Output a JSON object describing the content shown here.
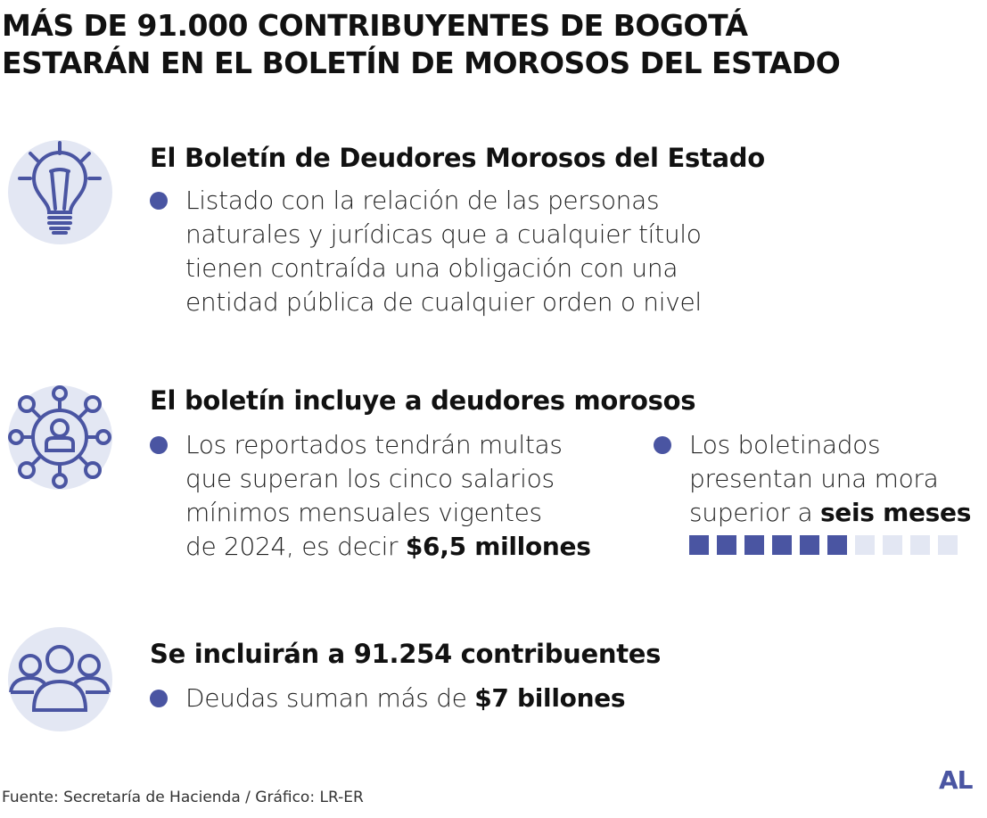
{
  "title": {
    "line1": "MÁS DE 91.000 CONTRIBUYENTES DE BOGOTÁ",
    "line2": "ESTARÁN EN EL BOLETÍN DE MOROSOS DEL ESTADO"
  },
  "colors": {
    "accent": "#4a55a2",
    "light": "#e3e7f3"
  },
  "sections": [
    {
      "icon": "lightbulb-icon",
      "heading": "El Boletín de Deudores Morosos del Estado",
      "bullet": {
        "lines": [
          "Listado con la relación de las personas",
          "naturales y jurídicas que a cualquier título",
          "tienen contraída una obligación con una",
          "entidad pública de cualquier orden o nivel"
        ]
      }
    },
    {
      "icon": "network-person-icon",
      "heading": "El boletín incluye a deudores morosos",
      "bullet_left": {
        "lines": [
          "Los reportados tendrán multas",
          "que superan los cinco salarios",
          "mínimos mensuales vigentes"
        ],
        "last_prefix": "de 2024, es decir ",
        "last_bold": "$6,5 millones"
      },
      "bullet_right": {
        "lines": [
          "Los boletinados",
          "presentan una mora"
        ],
        "last_prefix": "superior a ",
        "last_bold": "seis meses",
        "months_filled": 6,
        "months_total": 10
      }
    },
    {
      "icon": "group-people-icon",
      "heading": "Se incluirán a 91.254 contribuentes",
      "bullet": {
        "prefix": "Deudas suman más de ",
        "bold": "$7 billones"
      }
    }
  ],
  "footer": "Fuente: Secretaría de Hacienda / Gráfico: LR-ER",
  "logo": "AL"
}
